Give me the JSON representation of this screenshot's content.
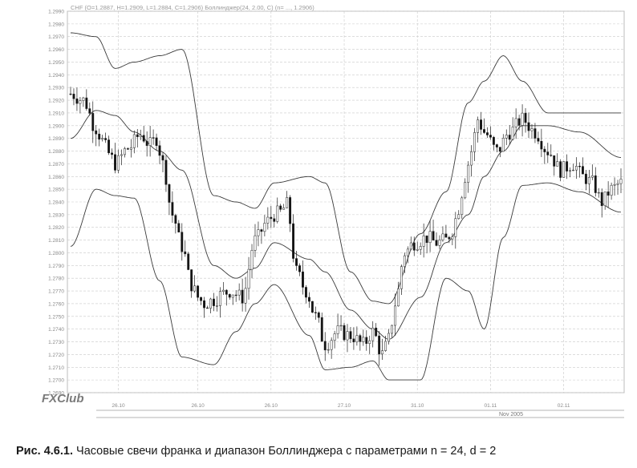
{
  "figure": {
    "legend_text": "CHF (O=1.2887, H=1.2909, L=1.2884, C=1.2906)   Боллинджер(24, 2.00, C) (n= ..., 1.2906)",
    "logo_text": "FXClub",
    "period_label": "Nov 2005",
    "caption_label": "Рис. 4.6.1.",
    "caption_text": " Часовые свечи франка и диапазон Боллинджера с параметрами n = 24, d = 2"
  },
  "chart_data": {
    "type": "candlestick",
    "title": "",
    "xlabel": "",
    "ylabel": "",
    "ylim": [
      1.269,
      1.299
    ],
    "y_ticks": [
      1.299,
      1.298,
      1.297,
      1.296,
      1.295,
      1.294,
      1.293,
      1.292,
      1.291,
      1.29,
      1.289,
      1.288,
      1.287,
      1.286,
      1.285,
      1.284,
      1.283,
      1.282,
      1.281,
      1.28,
      1.279,
      1.278,
      1.277,
      1.276,
      1.275,
      1.274,
      1.273,
      1.272,
      1.271,
      1.27,
      1.269
    ],
    "y_tick_labels": [
      "1.2990",
      "1.2980",
      "1.2970",
      "1.2960",
      "1.2950",
      "1.2940",
      "1.2930",
      "1.2920",
      "1.2910",
      "1.2900",
      "1.2890",
      "1.2880",
      "1.2870",
      "1.2860",
      "1.2850",
      "1.2840",
      "1.2830",
      "1.2820",
      "1.2810",
      "1.2800",
      "1.2790",
      "1.2780",
      "1.2770",
      "1.2760",
      "1.2750",
      "1.2740",
      "1.2730",
      "1.2720",
      "1.2710",
      "1.2700",
      "1.2690"
    ],
    "x_tick_labels": [
      {
        "label": "26.10",
        "bar": 15
      },
      {
        "label": "26.10",
        "bar": 40
      },
      {
        "label": "26.10",
        "bar": 63
      },
      {
        "label": "27.10",
        "bar": 86
      },
      {
        "label": "31.10",
        "bar": 109
      },
      {
        "label": "01.11",
        "bar": 132
      },
      {
        "label": "02.11",
        "bar": 155
      }
    ],
    "x_range": [
      0,
      173
    ],
    "grid": true,
    "candle_anchor_bars": [
      0,
      4,
      8,
      10,
      12,
      14,
      18,
      22,
      25,
      27,
      29,
      32,
      35,
      38,
      40,
      42,
      45,
      48,
      50,
      54,
      58,
      62,
      64,
      66,
      68,
      71,
      74,
      77,
      80,
      84,
      88,
      92,
      95,
      98,
      100,
      102,
      105,
      108,
      112,
      115,
      118,
      120,
      122,
      124,
      126,
      128,
      130,
      134,
      138,
      142,
      146,
      150,
      154,
      158,
      161,
      164,
      167,
      170,
      173
    ],
    "candle_anchor_closes": [
      1.2925,
      1.292,
      1.2898,
      1.2888,
      1.2878,
      1.287,
      1.2882,
      1.2893,
      1.2885,
      1.289,
      1.287,
      1.283,
      1.2805,
      1.2775,
      1.2765,
      1.276,
      1.2763,
      1.2768,
      1.277,
      1.2765,
      1.281,
      1.2825,
      1.283,
      1.2832,
      1.2838,
      1.2785,
      1.277,
      1.275,
      1.2728,
      1.2738,
      1.2735,
      1.2728,
      1.2738,
      1.272,
      1.2732,
      1.276,
      1.28,
      1.2808,
      1.2812,
      1.2808,
      1.281,
      1.2818,
      1.2835,
      1.286,
      1.288,
      1.2905,
      1.2895,
      1.288,
      1.2895,
      1.2905,
      1.2895,
      1.288,
      1.2865,
      1.287,
      1.286,
      1.2855,
      1.284,
      1.285,
      1.2855
    ],
    "bollinger": {
      "upper": {
        "bars": [
          0,
          8,
          14,
          20,
          28,
          35,
          45,
          52,
          58,
          64,
          75,
          80,
          88,
          95,
          100,
          110,
          118,
          125,
          130,
          136,
          142,
          150,
          160,
          173
        ],
        "values": [
          1.2973,
          1.297,
          1.2945,
          1.295,
          1.2955,
          1.296,
          1.2845,
          1.284,
          1.2835,
          1.2855,
          1.286,
          1.2855,
          1.2785,
          1.2762,
          1.276,
          1.2815,
          1.2848,
          1.2918,
          1.2935,
          1.2955,
          1.2935,
          1.291,
          1.291,
          1.291
        ]
      },
      "middle": {
        "bars": [
          0,
          8,
          14,
          20,
          28,
          35,
          45,
          52,
          58,
          64,
          75,
          80,
          88,
          95,
          100,
          110,
          118,
          125,
          130,
          136,
          142,
          150,
          160,
          173
        ],
        "values": [
          1.289,
          1.2912,
          1.2908,
          1.2895,
          1.288,
          1.2865,
          1.279,
          1.278,
          1.2788,
          1.2808,
          1.2795,
          1.2785,
          1.2755,
          1.274,
          1.2732,
          1.2765,
          1.2808,
          1.283,
          1.286,
          1.288,
          1.29,
          1.29,
          1.2895,
          1.2875
        ]
      },
      "lower": {
        "bars": [
          0,
          8,
          14,
          20,
          28,
          35,
          45,
          52,
          58,
          64,
          75,
          80,
          88,
          95,
          100,
          110,
          118,
          125,
          130,
          136,
          142,
          150,
          160,
          173
        ],
        "values": [
          1.2805,
          1.285,
          1.2845,
          1.2843,
          1.2778,
          1.2718,
          1.2712,
          1.2738,
          1.276,
          1.2775,
          1.2735,
          1.2708,
          1.271,
          1.2715,
          1.27,
          1.27,
          1.278,
          1.277,
          1.274,
          1.2812,
          1.2853,
          1.2855,
          1.2848,
          1.2832
        ]
      }
    }
  }
}
